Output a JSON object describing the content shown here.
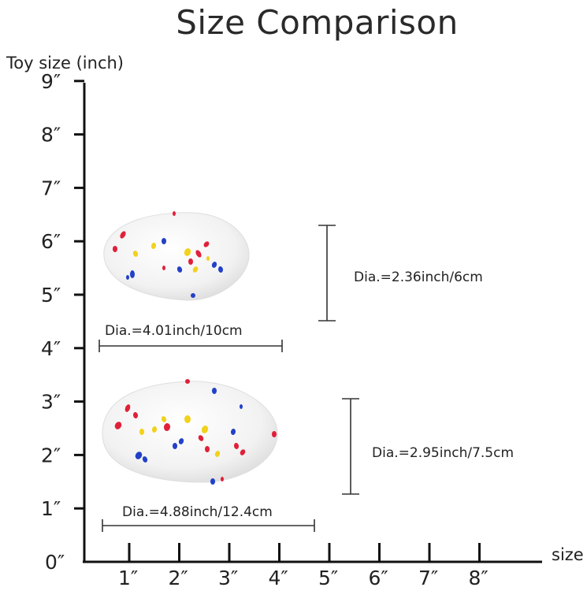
{
  "header": {
    "title": "Size Comparison"
  },
  "axes": {
    "y_title": "Toy size (inch)",
    "x_title": "size",
    "y_ticks": [
      "0″",
      "1″",
      "2″",
      "3″",
      "4″",
      "5″",
      "6″",
      "7″",
      "8″",
      "9″"
    ],
    "x_ticks": [
      "1″",
      "2″",
      "3″",
      "4″",
      "5″",
      "6″",
      "7″",
      "8″"
    ]
  },
  "toys": {
    "small": {
      "length_label": "Dia.=4.01inch/10cm",
      "height_label": "Dia.=2.36inch/6cm"
    },
    "large": {
      "length_label": "Dia.=4.88inch/12.4cm",
      "height_label": "Dia.=2.95inch/7.5cm"
    }
  },
  "colors": {
    "ball": "#f4f4f4",
    "speckle_red": "#e0203a",
    "speckle_blue": "#2340c8",
    "speckle_yellow": "#f3d11c"
  }
}
